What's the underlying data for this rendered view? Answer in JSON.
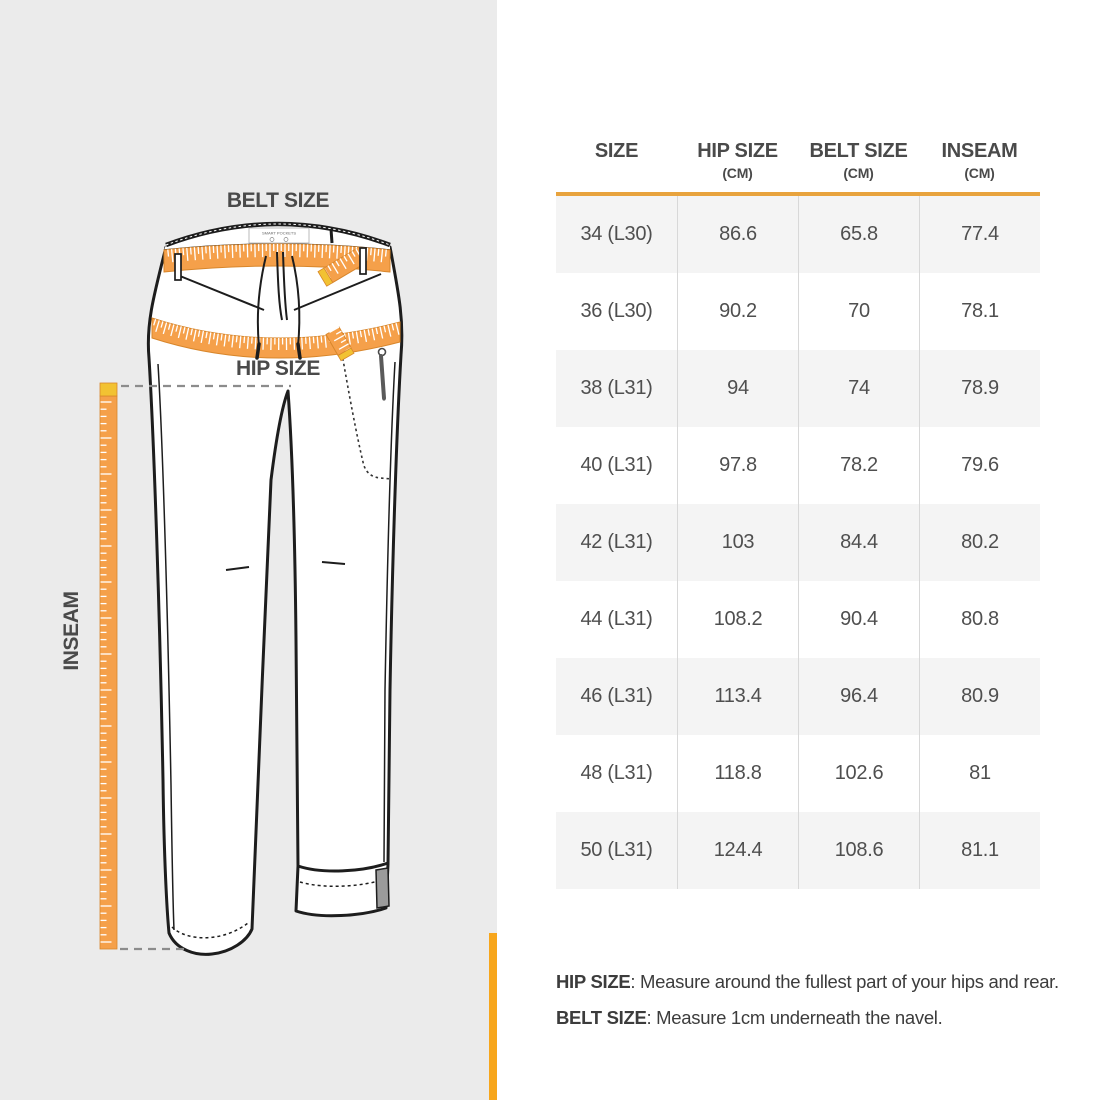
{
  "diagram": {
    "belt_label": "BELT SIZE",
    "hip_label": "HIP SIZE",
    "inseam_label": "INSEAM",
    "waistband_tag": "SMART POCKETS",
    "tape_color": "#F5A04A",
    "tape_tip_color": "#F2C232",
    "accent_color": "#F7A61C",
    "panel_color": "#EBEBEB"
  },
  "table": {
    "headers": [
      {
        "label": "SIZE",
        "unit": ""
      },
      {
        "label": "HIP SIZE",
        "unit": "(CM)"
      },
      {
        "label": "BELT SIZE",
        "unit": "(CM)"
      },
      {
        "label": "INSEAM",
        "unit": "(CM)"
      }
    ],
    "rows": [
      [
        "34 (L30)",
        "86.6",
        "65.8",
        "77.4"
      ],
      [
        "36 (L30)",
        "90.2",
        "70",
        "78.1"
      ],
      [
        "38 (L31)",
        "94",
        "74",
        "78.9"
      ],
      [
        "40 (L31)",
        "97.8",
        "78.2",
        "79.6"
      ],
      [
        "42 (L31)",
        "103",
        "84.4",
        "80.2"
      ],
      [
        "44 (L31)",
        "108.2",
        "90.4",
        "80.8"
      ],
      [
        "46 (L31)",
        "113.4",
        "96.4",
        "80.9"
      ],
      [
        "48 (L31)",
        "118.8",
        "102.6",
        "81"
      ],
      [
        "50 (L31)",
        "124.4",
        "108.6",
        "81.1"
      ]
    ],
    "rule_color": "#E8A33D",
    "row_alt_color": "#F4F4F4"
  },
  "notes": [
    {
      "term": "HIP SIZE",
      "text": ": Measure around the fullest part of your hips and rear."
    },
    {
      "term": "BELT SIZE",
      "text": ": Measure 1cm underneath the navel."
    }
  ]
}
